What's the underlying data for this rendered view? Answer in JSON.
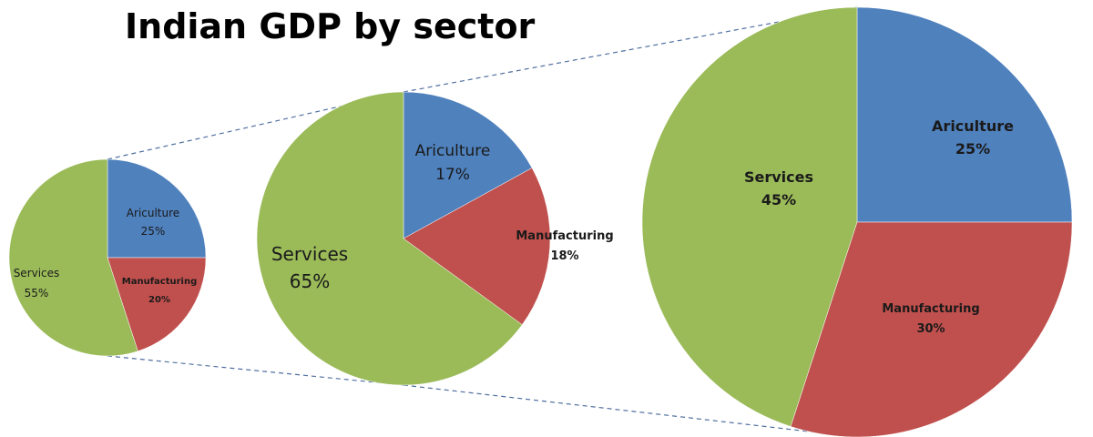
{
  "chart_data": {
    "type": "pie",
    "title": "Indian GDP by sector",
    "colors": {
      "Ariculture": "#4f81bd",
      "Manufacturing": "#c0504d",
      "Services": "#9bbb59"
    },
    "pies": [
      {
        "slices": [
          {
            "label": "Ariculture",
            "value": 25
          },
          {
            "label": "Manufacturing",
            "value": 20
          },
          {
            "label": "Services",
            "value": 55
          }
        ]
      },
      {
        "slices": [
          {
            "label": "Ariculture",
            "value": 17
          },
          {
            "label": "Manufacturing",
            "value": 18
          },
          {
            "label": "Services",
            "value": 65
          }
        ]
      },
      {
        "slices": [
          {
            "label": "Ariculture",
            "value": 25
          },
          {
            "label": "Manufacturing",
            "value": 30
          },
          {
            "label": "Services",
            "value": 45
          }
        ]
      }
    ]
  }
}
